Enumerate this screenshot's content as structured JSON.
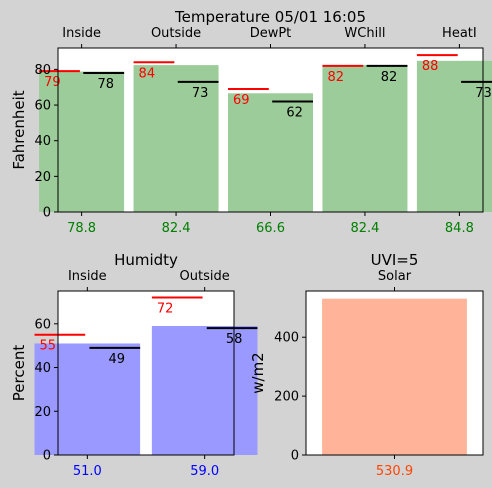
{
  "chart_data": [
    {
      "type": "bar",
      "title": "Temperature 05/01 16:05",
      "ylabel": "Fahrenheit",
      "categories": [
        "Inside",
        "Outside",
        "DewPt",
        "WChill",
        "HeatI"
      ],
      "values": [
        78.8,
        82.4,
        66.6,
        82.4,
        84.8
      ],
      "value_labels": [
        "78.8",
        "82.4",
        "66.6",
        "82.4",
        "84.8"
      ],
      "high_markers": [
        79,
        84,
        69,
        82,
        88
      ],
      "low_markers": [
        78,
        73,
        62,
        82,
        73
      ],
      "ylim": [
        0,
        92
      ],
      "yticks": [
        0,
        20,
        40,
        60,
        80
      ],
      "bar_color": "#9ccc99",
      "value_label_color": "#008000",
      "high_color": "#ff0000",
      "low_color": "#000000"
    },
    {
      "type": "bar",
      "title": "Humidty",
      "ylabel": "Percent",
      "categories": [
        "Inside",
        "Outside"
      ],
      "values": [
        51.0,
        59.0
      ],
      "value_labels": [
        "51.0",
        "59.0"
      ],
      "high_markers": [
        55,
        72
      ],
      "low_markers": [
        49,
        58
      ],
      "ylim": [
        0,
        75
      ],
      "yticks": [
        0,
        20,
        40,
        60
      ],
      "bar_color": "#9999ff",
      "value_label_color": "#0000ff",
      "high_color": "#ff0000",
      "low_color": "#000000"
    },
    {
      "type": "bar",
      "title": "UVI=5",
      "ylabel": "w/m2",
      "categories": [
        "Solar"
      ],
      "values": [
        530.9
      ],
      "value_labels": [
        "530.9"
      ],
      "ylim": [
        0,
        557
      ],
      "yticks": [
        0,
        200,
        400
      ],
      "bar_color": "#ffb399",
      "value_label_color": "#ff4500"
    }
  ]
}
